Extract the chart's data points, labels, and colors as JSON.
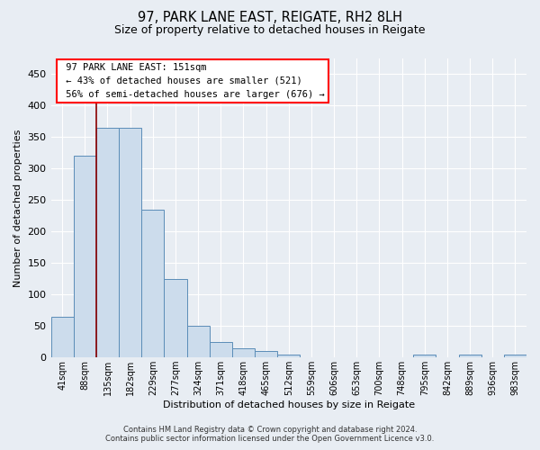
{
  "title1": "97, PARK LANE EAST, REIGATE, RH2 8LH",
  "title2": "Size of property relative to detached houses in Reigate",
  "xlabel": "Distribution of detached houses by size in Reigate",
  "ylabel": "Number of detached properties",
  "bar_labels": [
    "41sqm",
    "88sqm",
    "135sqm",
    "182sqm",
    "229sqm",
    "277sqm",
    "324sqm",
    "371sqm",
    "418sqm",
    "465sqm",
    "512sqm",
    "559sqm",
    "606sqm",
    "653sqm",
    "700sqm",
    "748sqm",
    "795sqm",
    "842sqm",
    "889sqm",
    "936sqm",
    "983sqm"
  ],
  "bar_values": [
    65,
    320,
    365,
    365,
    235,
    125,
    50,
    25,
    15,
    10,
    5,
    0,
    0,
    0,
    0,
    0,
    5,
    0,
    5,
    0,
    5
  ],
  "bar_color": "#ccdcec",
  "bar_edge_color": "#5b8db8",
  "ylim": [
    0,
    475
  ],
  "yticks": [
    0,
    50,
    100,
    150,
    200,
    250,
    300,
    350,
    400,
    450
  ],
  "property_label": "97 PARK LANE EAST: 151sqm",
  "annotation_line1": "← 43% of detached houses are smaller (521)",
  "annotation_line2": "56% of semi-detached houses are larger (676) →",
  "vline_x_index": 1.5,
  "footer_line1": "Contains HM Land Registry data © Crown copyright and database right 2024.",
  "footer_line2": "Contains public sector information licensed under the Open Government Licence v3.0.",
  "bg_color": "#e8edf3",
  "plot_bg_color": "#e8edf3"
}
